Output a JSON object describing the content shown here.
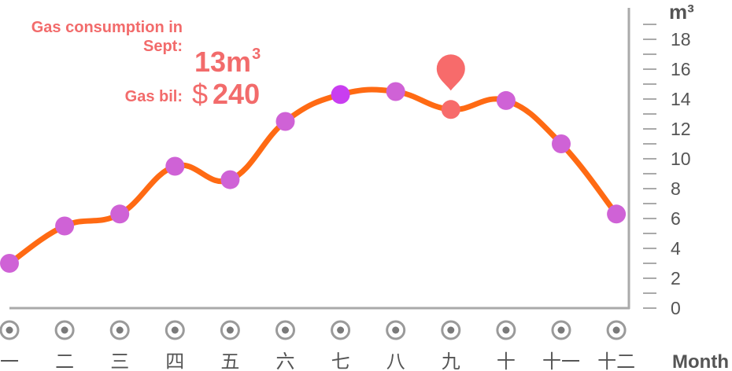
{
  "info": {
    "consumption_label": "Gas consumption in Sept:",
    "consumption_value": "13m",
    "consumption_unit_exp": "3",
    "bill_label": "Gas bil:",
    "bill_currency": "$",
    "bill_value": "240"
  },
  "colors": {
    "line": "#ff6a13",
    "point": "#cf62d6",
    "point_highlight": "#c93ef0",
    "point_selected": "#f76b6b",
    "marker": "#f76b6b",
    "text_accent": "#f26b6b",
    "axis": "#aaaaaa",
    "label": "#555555"
  },
  "chart_data": {
    "type": "line",
    "x_axis_title": "Month",
    "y_axis_unit": "m³",
    "categories": [
      "一",
      "二",
      "三",
      "四",
      "五",
      "六",
      "七",
      "八",
      "九",
      "十",
      "十一",
      "十二"
    ],
    "values": [
      3,
      5.5,
      6.3,
      9.5,
      8.6,
      12.5,
      14.3,
      14.5,
      13.3,
      13.9,
      11,
      6.3
    ],
    "highlighted_index": 6,
    "selected_index": 8,
    "ylim": [
      0,
      19
    ],
    "y_ticks": [
      0,
      2,
      4,
      6,
      8,
      10,
      12,
      14,
      16,
      18
    ],
    "smooth": true,
    "grid": false,
    "legend": "none",
    "x_markers": "radio-icon"
  }
}
